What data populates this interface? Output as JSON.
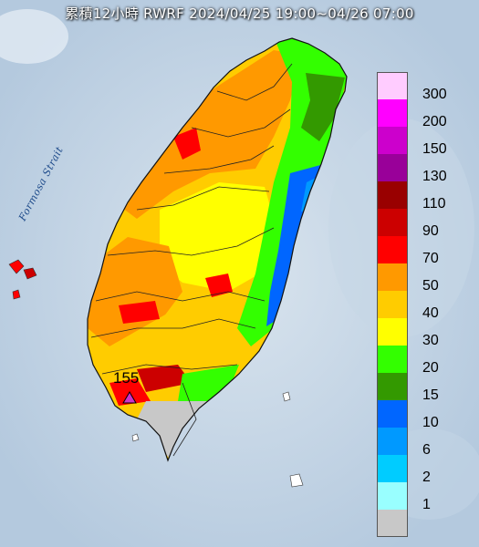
{
  "title": "累積12小時 RWRF 2024/04/25 19:00~04/26 07:00",
  "strait_label": "Formosa Strait",
  "max_marker": {
    "value": "155",
    "color": "#cc33cc"
  },
  "legend": [
    {
      "label": "300",
      "color": "#ffccff"
    },
    {
      "label": "200",
      "color": "#ff00ff"
    },
    {
      "label": "150",
      "color": "#cc00cc"
    },
    {
      "label": "130",
      "color": "#990099"
    },
    {
      "label": "110",
      "color": "#990000"
    },
    {
      "label": "90",
      "color": "#cc0000"
    },
    {
      "label": "70",
      "color": "#ff0000"
    },
    {
      "label": "50",
      "color": "#ff9900"
    },
    {
      "label": "40",
      "color": "#ffcc00"
    },
    {
      "label": "30",
      "color": "#ffff00"
    },
    {
      "label": "20",
      "color": "#33ff00"
    },
    {
      "label": "15",
      "color": "#339900"
    },
    {
      "label": "10",
      "color": "#0066ff"
    },
    {
      "label": "6",
      "color": "#0099ff"
    },
    {
      "label": "2",
      "color": "#00ccff"
    },
    {
      "label": "1",
      "color": "#99ffff"
    },
    {
      "label": "",
      "color": "#c8c8c8"
    }
  ]
}
